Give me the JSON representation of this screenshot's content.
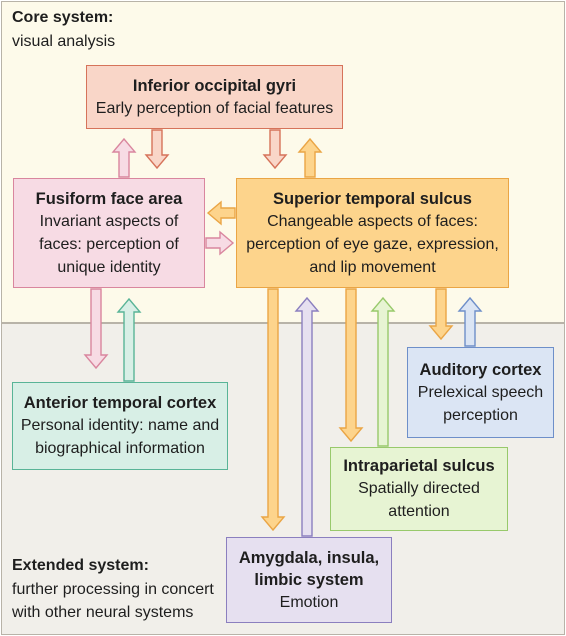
{
  "core_system": {
    "title": "Core system:",
    "subtitle": "visual analysis"
  },
  "extended_system": {
    "title": "Extended system:",
    "subtitle_line1": "further processing in concert",
    "subtitle_line2": "with other neural systems"
  },
  "regions": {
    "inferior_occipital": {
      "title": "Inferior occipital gyri",
      "lines": [
        "Early perception of facial features"
      ]
    },
    "fusiform": {
      "title": "Fusiform face area",
      "lines": [
        "Invariant aspects of",
        "faces: perception of",
        "unique identity"
      ]
    },
    "superior_temporal": {
      "title": "Superior temporal sulcus",
      "lines": [
        "Changeable aspects of faces:",
        "perception of eye gaze, expression,",
        "and lip movement"
      ]
    },
    "anterior_temporal": {
      "title": "Anterior temporal cortex",
      "lines": [
        "Personal identity: name and",
        "biographical information"
      ]
    },
    "auditory": {
      "title": "Auditory cortex",
      "lines": [
        "Prelexical speech",
        "perception"
      ]
    },
    "intraparietal": {
      "title": "Intraparietal sulcus",
      "lines": [
        "Spatially directed",
        "attention"
      ]
    },
    "amygdala": {
      "title_lines": [
        "Amygdala, insula,",
        "limbic system"
      ],
      "lines": [
        "Emotion"
      ]
    }
  },
  "colors": {
    "core_background": "#fdfaea",
    "extended_background": "#f1efea",
    "inferior_occipital": "#f9d6c8",
    "fusiform": "#f7dbe4",
    "superior_temporal": "#fdd48c",
    "anterior_temporal": "#d8efe6",
    "auditory": "#dbe5f4",
    "intraparietal": "#e7f4d3",
    "amygdala": "#e6e0f0"
  }
}
